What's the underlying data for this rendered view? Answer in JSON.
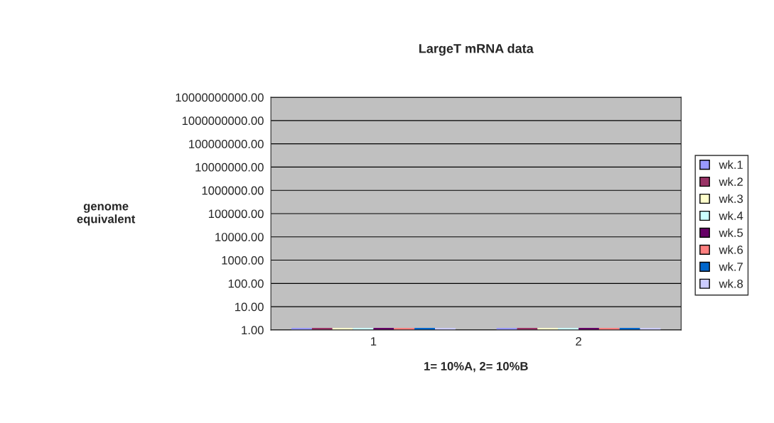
{
  "chart_data": {
    "type": "bar",
    "title": "LargeT mRNA data",
    "xlabel": "1= 10%A, 2= 10%B",
    "ylabel": "genome\nequivalent",
    "categories": [
      "1",
      "2"
    ],
    "series": [
      {
        "name": "wk.1",
        "color": "#9999ff",
        "values": [
          1,
          1
        ]
      },
      {
        "name": "wk.2",
        "color": "#993366",
        "values": [
          1,
          1
        ]
      },
      {
        "name": "wk.3",
        "color": "#ffffcc",
        "values": [
          1,
          1
        ]
      },
      {
        "name": "wk.4",
        "color": "#ccffff",
        "values": [
          1,
          1
        ]
      },
      {
        "name": "wk.5",
        "color": "#660066",
        "values": [
          1,
          1
        ]
      },
      {
        "name": "wk.6",
        "color": "#ff8080",
        "values": [
          1,
          1
        ]
      },
      {
        "name": "wk.7",
        "color": "#0066cc",
        "values": [
          1,
          1
        ]
      },
      {
        "name": "wk.8",
        "color": "#ccccff",
        "values": [
          1,
          1
        ]
      }
    ],
    "log": "y",
    "ylim": [
      1,
      10000000000
    ],
    "yticks": [
      {
        "value": 1,
        "label": "1.00"
      },
      {
        "value": 10,
        "label": "10.00"
      },
      {
        "value": 100,
        "label": "100.00"
      },
      {
        "value": 1000,
        "label": "1000.00"
      },
      {
        "value": 10000,
        "label": "10000.00"
      },
      {
        "value": 100000,
        "label": "100000.00"
      },
      {
        "value": 1000000,
        "label": "1000000.00"
      },
      {
        "value": 10000000,
        "label": "10000000.00"
      },
      {
        "value": 100000000,
        "label": "100000000.00"
      },
      {
        "value": 1000000000,
        "label": "1000000000.00"
      },
      {
        "value": 10000000000,
        "label": "10000000000.00"
      }
    ],
    "grid": "y",
    "legend": "right"
  }
}
